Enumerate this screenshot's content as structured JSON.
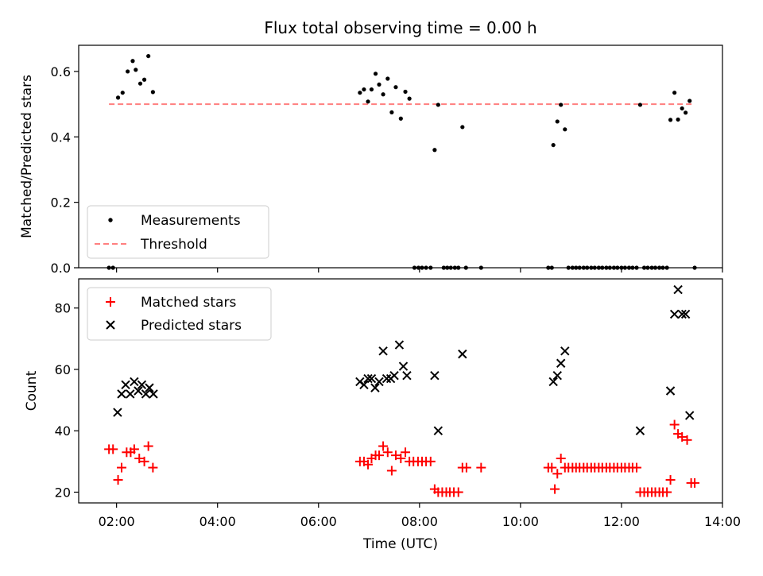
{
  "figure": {
    "title": "Flux total observing time = 0.00 h",
    "xlabel": "Time (UTC)"
  },
  "chart_data": [
    {
      "type": "scatter",
      "panel": "top",
      "ylabel": "Matched/Predicted stars",
      "xlim": [
        1.25,
        14.0
      ],
      "ylim": [
        0.0,
        0.68
      ],
      "yticks": [
        0.0,
        0.2,
        0.4,
        0.6
      ],
      "ytick_labels": [
        "0.0",
        "0.2",
        "0.4",
        "0.6"
      ],
      "legend_position": "lower-left",
      "threshold": {
        "name": "Threshold",
        "y": 0.5,
        "x": [
          1.85,
          13.45
        ],
        "color": "#ff7f7f",
        "style": "dashed"
      },
      "series": [
        {
          "name": "Measurements",
          "marker": "dot",
          "color": "#000000",
          "points": [
            [
              1.85,
              0.0
            ],
            [
              1.93,
              0.0
            ],
            [
              2.03,
              0.52
            ],
            [
              2.12,
              0.535
            ],
            [
              2.22,
              0.6
            ],
            [
              2.32,
              0.632
            ],
            [
              2.38,
              0.605
            ],
            [
              2.47,
              0.563
            ],
            [
              2.55,
              0.575
            ],
            [
              2.63,
              0.647
            ],
            [
              2.72,
              0.537
            ],
            [
              6.82,
              0.535
            ],
            [
              6.9,
              0.545
            ],
            [
              6.98,
              0.508
            ],
            [
              7.05,
              0.545
            ],
            [
              7.13,
              0.593
            ],
            [
              7.2,
              0.56
            ],
            [
              7.28,
              0.53
            ],
            [
              7.37,
              0.578
            ],
            [
              7.45,
              0.475
            ],
            [
              7.53,
              0.552
            ],
            [
              7.63,
              0.456
            ],
            [
              7.72,
              0.538
            ],
            [
              7.8,
              0.517
            ],
            [
              7.9,
              0.0
            ],
            [
              7.98,
              0.0
            ],
            [
              8.05,
              0.0
            ],
            [
              8.13,
              0.0
            ],
            [
              8.22,
              0.0
            ],
            [
              8.3,
              0.36
            ],
            [
              8.37,
              0.498
            ],
            [
              8.48,
              0.0
            ],
            [
              8.55,
              0.0
            ],
            [
              8.62,
              0.0
            ],
            [
              8.7,
              0.0
            ],
            [
              8.77,
              0.0
            ],
            [
              8.85,
              0.43
            ],
            [
              8.92,
              0.0
            ],
            [
              9.22,
              0.0
            ],
            [
              10.55,
              0.0
            ],
            [
              10.62,
              0.0
            ],
            [
              10.65,
              0.375
            ],
            [
              10.73,
              0.447
            ],
            [
              10.8,
              0.498
            ],
            [
              10.88,
              0.423
            ],
            [
              10.95,
              0.0
            ],
            [
              11.03,
              0.0
            ],
            [
              11.1,
              0.0
            ],
            [
              11.17,
              0.0
            ],
            [
              11.25,
              0.0
            ],
            [
              11.32,
              0.0
            ],
            [
              11.4,
              0.0
            ],
            [
              11.47,
              0.0
            ],
            [
              11.55,
              0.0
            ],
            [
              11.62,
              0.0
            ],
            [
              11.7,
              0.0
            ],
            [
              11.77,
              0.0
            ],
            [
              11.85,
              0.0
            ],
            [
              11.92,
              0.0
            ],
            [
              12.0,
              0.0
            ],
            [
              12.07,
              0.0
            ],
            [
              12.15,
              0.0
            ],
            [
              12.22,
              0.0
            ],
            [
              12.3,
              0.0
            ],
            [
              12.37,
              0.498
            ],
            [
              12.45,
              0.0
            ],
            [
              12.52,
              0.0
            ],
            [
              12.6,
              0.0
            ],
            [
              12.67,
              0.0
            ],
            [
              12.75,
              0.0
            ],
            [
              12.82,
              0.0
            ],
            [
              12.9,
              0.0
            ],
            [
              12.97,
              0.452
            ],
            [
              13.05,
              0.535
            ],
            [
              13.12,
              0.453
            ],
            [
              13.2,
              0.487
            ],
            [
              13.27,
              0.474
            ],
            [
              13.35,
              0.51
            ],
            [
              13.45,
              0.0
            ]
          ]
        }
      ]
    },
    {
      "type": "scatter",
      "panel": "bottom",
      "ylabel": "Count",
      "xlim": [
        1.25,
        14.0
      ],
      "ylim": [
        16.5,
        89.5
      ],
      "yticks": [
        20,
        40,
        60,
        80
      ],
      "ytick_labels": [
        "20",
        "40",
        "60",
        "80"
      ],
      "xticks": [
        2,
        4,
        6,
        8,
        10,
        12,
        14
      ],
      "xtick_labels": [
        "02:00",
        "04:00",
        "06:00",
        "08:00",
        "10:00",
        "12:00",
        "14:00"
      ],
      "legend_position": "upper-left",
      "series": [
        {
          "name": "Matched stars",
          "marker": "plus",
          "color": "#ff0000",
          "points": [
            [
              1.85,
              34
            ],
            [
              1.93,
              34
            ],
            [
              2.03,
              24
            ],
            [
              2.1,
              28
            ],
            [
              2.2,
              33
            ],
            [
              2.28,
              33
            ],
            [
              2.35,
              34
            ],
            [
              2.45,
              31
            ],
            [
              2.55,
              30
            ],
            [
              2.63,
              35
            ],
            [
              2.72,
              28
            ],
            [
              6.82,
              30
            ],
            [
              6.9,
              30
            ],
            [
              6.98,
              29
            ],
            [
              7.05,
              31
            ],
            [
              7.13,
              32
            ],
            [
              7.2,
              32
            ],
            [
              7.28,
              35
            ],
            [
              7.37,
              33
            ],
            [
              7.45,
              27
            ],
            [
              7.53,
              32
            ],
            [
              7.63,
              31
            ],
            [
              7.72,
              33
            ],
            [
              7.8,
              30
            ],
            [
              7.88,
              30
            ],
            [
              7.97,
              30
            ],
            [
              8.05,
              30
            ],
            [
              8.13,
              30
            ],
            [
              8.22,
              30
            ],
            [
              8.3,
              21
            ],
            [
              8.37,
              20
            ],
            [
              8.45,
              20
            ],
            [
              8.53,
              20
            ],
            [
              8.6,
              20
            ],
            [
              8.68,
              20
            ],
            [
              8.77,
              20
            ],
            [
              8.85,
              28
            ],
            [
              8.93,
              28
            ],
            [
              9.22,
              28
            ],
            [
              10.55,
              28
            ],
            [
              10.62,
              28
            ],
            [
              10.68,
              21
            ],
            [
              10.73,
              26
            ],
            [
              10.8,
              31
            ],
            [
              10.88,
              28
            ],
            [
              10.95,
              28
            ],
            [
              11.03,
              28
            ],
            [
              11.1,
              28
            ],
            [
              11.17,
              28
            ],
            [
              11.25,
              28
            ],
            [
              11.32,
              28
            ],
            [
              11.4,
              28
            ],
            [
              11.47,
              28
            ],
            [
              11.55,
              28
            ],
            [
              11.62,
              28
            ],
            [
              11.7,
              28
            ],
            [
              11.77,
              28
            ],
            [
              11.85,
              28
            ],
            [
              11.92,
              28
            ],
            [
              12.0,
              28
            ],
            [
              12.07,
              28
            ],
            [
              12.15,
              28
            ],
            [
              12.22,
              28
            ],
            [
              12.3,
              28
            ],
            [
              12.37,
              20
            ],
            [
              12.45,
              20
            ],
            [
              12.52,
              20
            ],
            [
              12.6,
              20
            ],
            [
              12.67,
              20
            ],
            [
              12.75,
              20
            ],
            [
              12.82,
              20
            ],
            [
              12.9,
              20
            ],
            [
              12.97,
              24
            ],
            [
              13.05,
              42
            ],
            [
              13.12,
              39
            ],
            [
              13.2,
              38
            ],
            [
              13.3,
              37
            ],
            [
              13.38,
              23
            ],
            [
              13.45,
              23
            ]
          ]
        },
        {
          "name": "Predicted stars",
          "marker": "x",
          "color": "#000000",
          "points": [
            [
              2.02,
              46
            ],
            [
              2.1,
              52
            ],
            [
              2.18,
              55
            ],
            [
              2.27,
              52
            ],
            [
              2.35,
              56
            ],
            [
              2.43,
              53
            ],
            [
              2.5,
              55
            ],
            [
              2.58,
              52
            ],
            [
              2.65,
              54
            ],
            [
              2.73,
              52
            ],
            [
              6.82,
              56
            ],
            [
              6.9,
              55
            ],
            [
              6.98,
              57
            ],
            [
              7.05,
              57
            ],
            [
              7.12,
              54
            ],
            [
              7.2,
              56
            ],
            [
              7.28,
              66
            ],
            [
              7.35,
              57
            ],
            [
              7.43,
              57
            ],
            [
              7.5,
              58
            ],
            [
              7.6,
              68
            ],
            [
              7.68,
              61
            ],
            [
              7.75,
              58
            ],
            [
              8.3,
              58
            ],
            [
              8.37,
              40
            ],
            [
              8.85,
              65
            ],
            [
              10.65,
              56
            ],
            [
              10.73,
              58
            ],
            [
              10.8,
              62
            ],
            [
              10.88,
              66
            ],
            [
              12.37,
              40
            ],
            [
              12.97,
              53
            ],
            [
              13.05,
              78
            ],
            [
              13.12,
              86
            ],
            [
              13.2,
              78
            ],
            [
              13.27,
              78
            ],
            [
              13.35,
              45
            ]
          ]
        }
      ]
    }
  ]
}
